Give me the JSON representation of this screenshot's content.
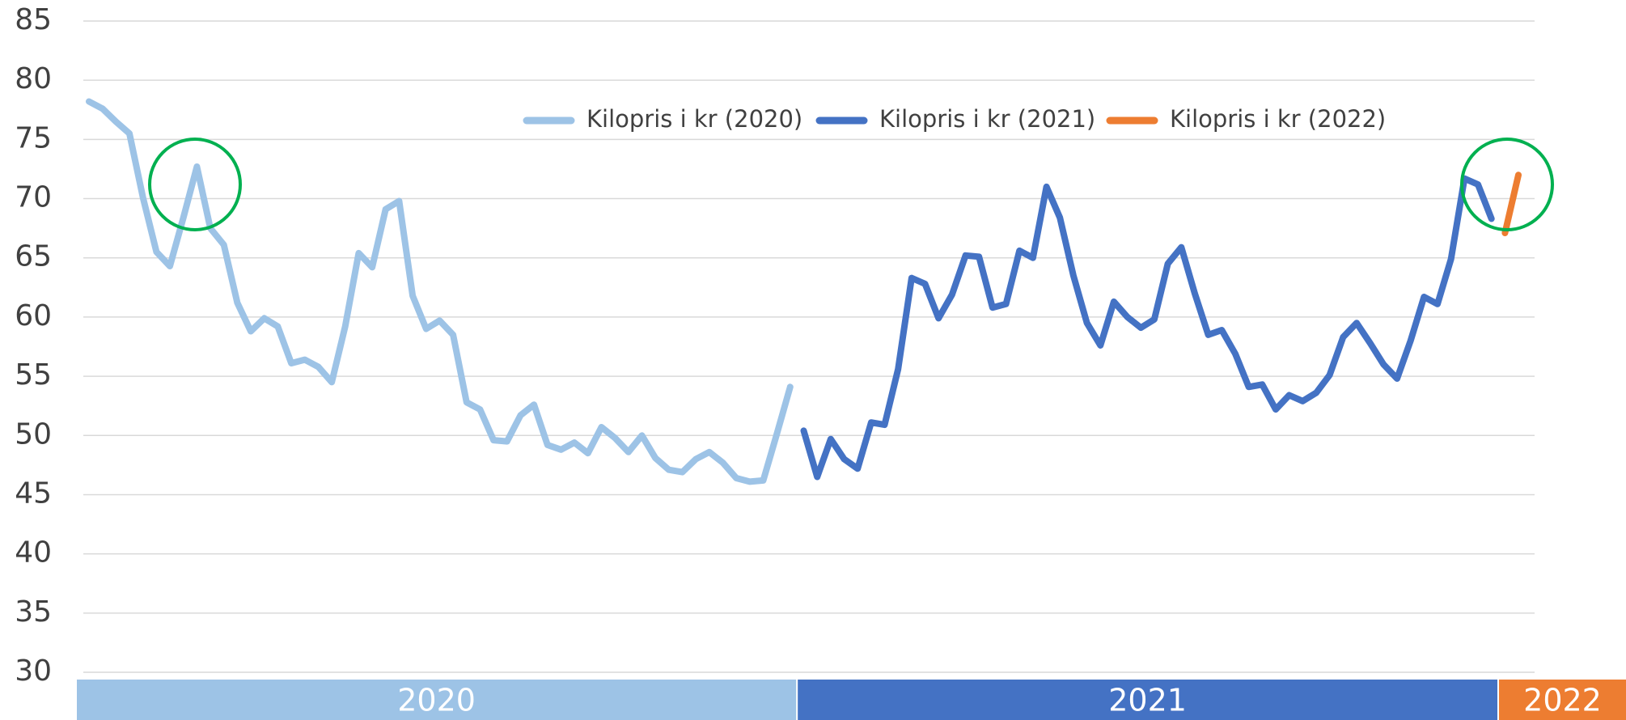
{
  "chart_data": {
    "type": "line",
    "series": [
      {
        "name": "Kilopris i kr (2020)",
        "color": "#9dc3e6",
        "values": [
          78.2,
          77.6,
          76.5,
          75.5,
          70.1,
          65.5,
          64.3,
          68.4,
          72.7,
          67.5,
          66.1,
          61.2,
          58.8,
          59.9,
          59.2,
          56.1,
          56.4,
          55.8,
          54.5,
          59.2,
          65.4,
          64.2,
          69.1,
          69.8,
          61.8,
          59.0,
          59.7,
          58.5,
          52.8,
          52.2,
          49.6,
          49.5,
          51.7,
          52.6,
          49.2,
          48.8,
          49.4,
          48.5,
          50.7,
          49.8,
          48.6,
          50.0,
          48.1,
          47.1,
          46.9,
          48.0,
          48.6,
          47.7,
          46.4,
          46.1,
          46.2,
          50.1,
          54.1,
          null,
          null,
          null,
          null,
          null,
          null,
          null,
          null,
          null,
          null,
          null,
          null,
          null,
          null,
          null,
          null,
          null,
          null,
          null,
          null,
          null,
          null,
          null,
          null,
          null,
          null,
          null,
          null,
          null,
          null,
          null,
          null,
          null,
          null,
          null,
          null,
          null,
          null,
          null,
          null,
          null,
          null,
          null,
          null,
          null,
          null,
          null,
          null,
          null,
          null,
          null,
          null,
          null,
          null
        ]
      },
      {
        "name": "Kilopris i kr (2021)",
        "color": "#4472c4",
        "values": [
          null,
          null,
          null,
          null,
          null,
          null,
          null,
          null,
          null,
          null,
          null,
          null,
          null,
          null,
          null,
          null,
          null,
          null,
          null,
          null,
          null,
          null,
          null,
          null,
          null,
          null,
          null,
          null,
          null,
          null,
          null,
          null,
          null,
          null,
          null,
          null,
          null,
          null,
          null,
          null,
          null,
          null,
          null,
          null,
          null,
          null,
          null,
          null,
          null,
          null,
          null,
          null,
          null,
          50.4,
          46.5,
          49.7,
          48.0,
          47.2,
          51.1,
          50.9,
          55.6,
          63.3,
          62.8,
          59.9,
          61.9,
          65.2,
          65.1,
          60.8,
          61.1,
          65.6,
          65.0,
          71.0,
          68.4,
          63.5,
          59.5,
          57.6,
          61.3,
          60.0,
          59.1,
          59.8,
          64.5,
          65.9,
          62.0,
          58.5,
          58.9,
          56.9,
          54.1,
          54.3,
          52.2,
          53.4,
          52.9,
          53.6,
          55.1,
          58.3,
          59.5,
          57.8,
          56.0,
          54.8,
          58.0,
          61.7,
          61.1,
          64.9,
          71.7,
          71.2,
          68.3,
          null,
          null
        ]
      },
      {
        "name": "Kilopris i kr (2022)",
        "color": "#ed7d31",
        "values": [
          null,
          null,
          null,
          null,
          null,
          null,
          null,
          null,
          null,
          null,
          null,
          null,
          null,
          null,
          null,
          null,
          null,
          null,
          null,
          null,
          null,
          null,
          null,
          null,
          null,
          null,
          null,
          null,
          null,
          null,
          null,
          null,
          null,
          null,
          null,
          null,
          null,
          null,
          null,
          null,
          null,
          null,
          null,
          null,
          null,
          null,
          null,
          null,
          null,
          null,
          null,
          null,
          null,
          null,
          null,
          null,
          null,
          null,
          null,
          null,
          null,
          null,
          null,
          null,
          null,
          null,
          null,
          null,
          null,
          null,
          null,
          null,
          null,
          null,
          null,
          null,
          null,
          null,
          null,
          null,
          null,
          null,
          null,
          null,
          null,
          null,
          null,
          null,
          null,
          null,
          null,
          null,
          null,
          null,
          null,
          null,
          null,
          null,
          null,
          null,
          null,
          null,
          null,
          null,
          null,
          67.1,
          72.0
        ]
      }
    ],
    "x_band_labels": [
      "2020",
      "2021",
      "2022"
    ],
    "ylim": [
      30,
      85
    ],
    "yticks": [
      30,
      35,
      40,
      45,
      50,
      55,
      60,
      65,
      70,
      75,
      80,
      85
    ],
    "grid": true,
    "legend": "top"
  }
}
